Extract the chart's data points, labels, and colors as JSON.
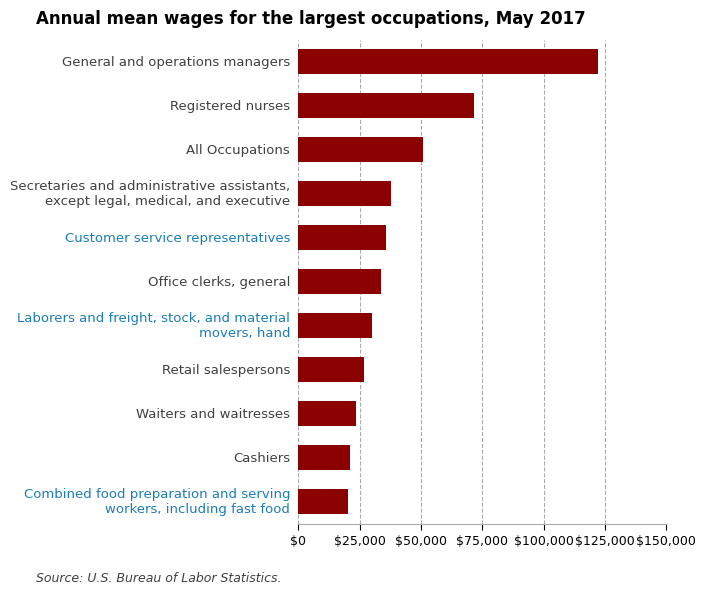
{
  "title": "Annual mean wages for the largest occupations, May 2017",
  "source": "Source: U.S. Bureau of Labor Statistics.",
  "categories": [
    "General and operations managers",
    "Registered nurses",
    "All Occupations",
    "Secretaries and administrative assistants,\nexcept legal, medical, and executive",
    "Customer service representatives",
    "Office clerks, general",
    "Laborers and freight, stock, and material\nmovers, hand",
    "Retail salespersons",
    "Waiters and waitresses",
    "Cashiers",
    "Combined food preparation and serving\nworkers, including fast food"
  ],
  "label_colors": [
    "#404040",
    "#404040",
    "#404040",
    "#404040",
    "#1A7DB5",
    "#404040",
    "#1A7DB5",
    "#404040",
    "#404040",
    "#404040",
    "#1A7DB5"
  ],
  "values": [
    122090,
    71730,
    50620,
    37870,
    35830,
    33800,
    30110,
    26590,
    23550,
    21030,
    20180
  ],
  "bar_color": "#8B0000",
  "xlim": [
    0,
    150000
  ],
  "xticks": [
    0,
    25000,
    50000,
    75000,
    100000,
    125000,
    150000
  ],
  "xtick_labels": [
    "$0",
    "$25,000",
    "$50,000",
    "$75,000",
    "$100,000",
    "$125,000",
    "$150,000"
  ],
  "title_fontsize": 12,
  "tick_fontsize": 9,
  "label_fontsize": 9.5,
  "source_fontsize": 9
}
